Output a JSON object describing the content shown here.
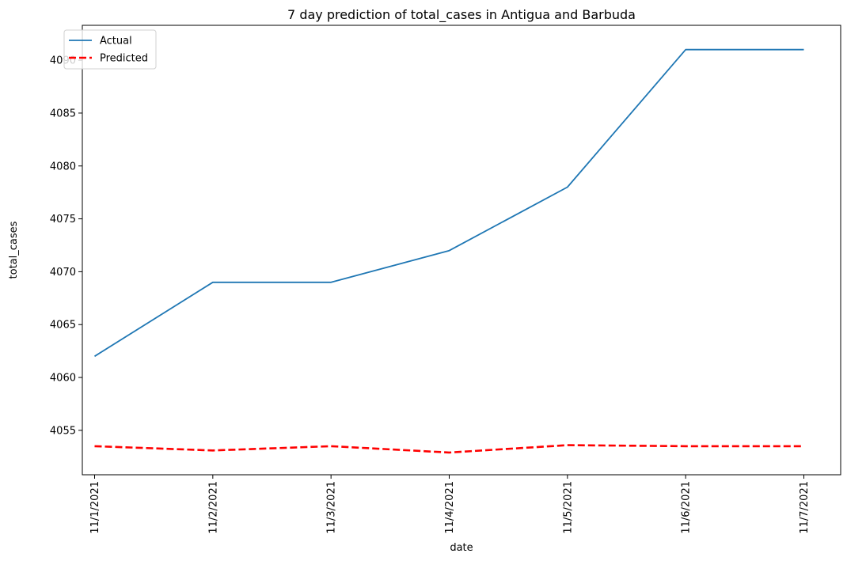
{
  "chart_data": {
    "type": "line",
    "title": "7 day prediction of total_cases in Antigua and Barbuda",
    "xlabel": "date",
    "ylabel": "total_cases",
    "categories": [
      "11/1/2021",
      "11/2/2021",
      "11/3/2021",
      "11/4/2021",
      "11/5/2021",
      "11/6/2021",
      "11/7/2021"
    ],
    "series": [
      {
        "name": "Actual",
        "color": "#1f77b4",
        "style": "solid",
        "values": [
          4062,
          4069,
          4069,
          4072,
          4078,
          4091,
          4091
        ]
      },
      {
        "name": "Predicted",
        "color": "#ff0000",
        "style": "dashed",
        "values": [
          4053.5,
          4053.1,
          4053.5,
          4052.9,
          4053.6,
          4053.5,
          4053.5
        ]
      }
    ],
    "ylim": [
      4050.8,
      4093.3
    ],
    "yticks": [
      4055,
      4060,
      4065,
      4070,
      4075,
      4080,
      4085,
      4090
    ],
    "legend_position": "top-left",
    "grid": false
  }
}
